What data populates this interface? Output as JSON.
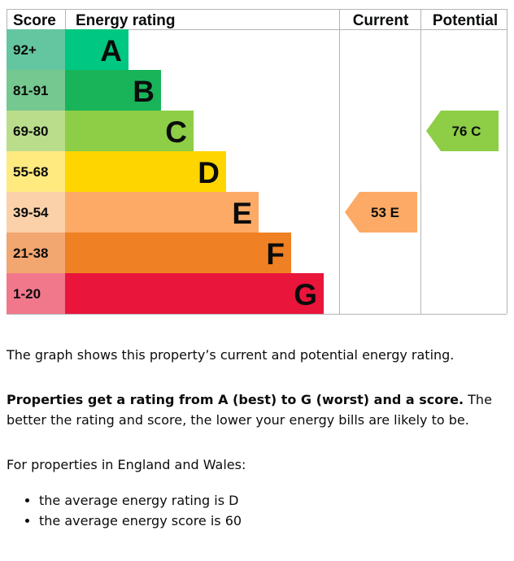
{
  "chart_data": {
    "type": "bar",
    "headers": {
      "score": "Score",
      "rating": "Energy rating",
      "current": "Current",
      "potential": "Potential"
    },
    "bands": [
      {
        "letter": "A",
        "range": "92+",
        "min": 92,
        "max": 100,
        "color": "#00c781",
        "score_color": "#64c6a0"
      },
      {
        "letter": "B",
        "range": "81-91",
        "min": 81,
        "max": 91,
        "color": "#19b459",
        "score_color": "#75c88f"
      },
      {
        "letter": "C",
        "range": "69-80",
        "min": 69,
        "max": 80,
        "color": "#8dce46",
        "score_color": "#badd8c"
      },
      {
        "letter": "D",
        "range": "55-68",
        "min": 55,
        "max": 68,
        "color": "#ffd500",
        "score_color": "#feea7f"
      },
      {
        "letter": "E",
        "range": "39-54",
        "min": 39,
        "max": 54,
        "color": "#fcaa65",
        "score_color": "#fbd1aa"
      },
      {
        "letter": "F",
        "range": "21-38",
        "min": 21,
        "max": 38,
        "color": "#ef8023",
        "score_color": "#f2a670"
      },
      {
        "letter": "G",
        "range": "1-20",
        "min": 1,
        "max": 20,
        "color": "#e9153b",
        "score_color": "#f1788b"
      }
    ],
    "current": {
      "score": 53,
      "rating": "E",
      "label": "53  E",
      "color": "#fcaa65"
    },
    "potential": {
      "score": 76,
      "rating": "C",
      "label": "76  C",
      "color": "#8dce46"
    }
  },
  "text": {
    "summary": "The graph shows this property’s current and potential energy rating.",
    "rating_bold": "Properties get a rating from A (best) to G (worst) and a score.",
    "rating_rest": " The better the rating and score, the lower your energy bills are likely to be.",
    "averages_intro": "For properties in England and Wales:",
    "averages": [
      "the average energy rating is D",
      "the average energy score is 60"
    ]
  },
  "colors": {
    "grid": "#b1b4b6",
    "text": "#0b0c0c"
  }
}
